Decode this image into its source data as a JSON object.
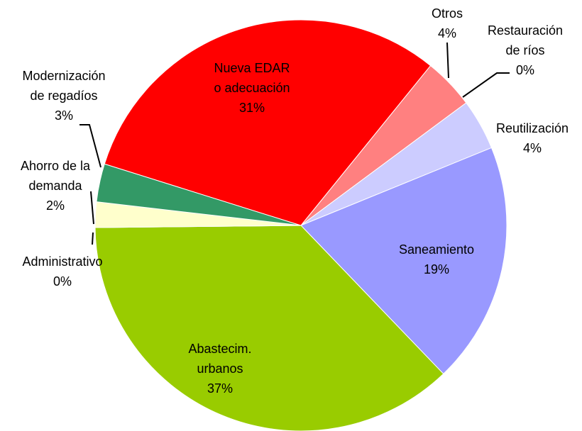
{
  "chart_data": {
    "type": "pie",
    "categories": [
      [
        "Otros"
      ],
      [
        "Restauración",
        "de ríos"
      ],
      [
        "Reutilización"
      ],
      [
        "Saneamiento"
      ],
      [
        "Abastecim.",
        "urbanos"
      ],
      [
        "Administrativo"
      ],
      [
        "Ahorro de la",
        "demanda"
      ],
      [
        "Modernización",
        "de regadíos"
      ],
      [
        "Nueva EDAR",
        "o adecuación"
      ]
    ],
    "values": [
      4,
      0,
      4,
      19,
      37,
      0,
      2,
      3,
      31
    ],
    "value_labels": [
      "4%",
      "0%",
      "4%",
      "19%",
      "37%",
      "0%",
      "2%",
      "3%",
      "31%"
    ],
    "colors": [
      "#ff8080",
      "#ffcccc",
      "#ccccff",
      "#9999ff",
      "#99cc00",
      "#ffffff",
      "#ffffcc",
      "#339966",
      "#ff0000"
    ]
  }
}
